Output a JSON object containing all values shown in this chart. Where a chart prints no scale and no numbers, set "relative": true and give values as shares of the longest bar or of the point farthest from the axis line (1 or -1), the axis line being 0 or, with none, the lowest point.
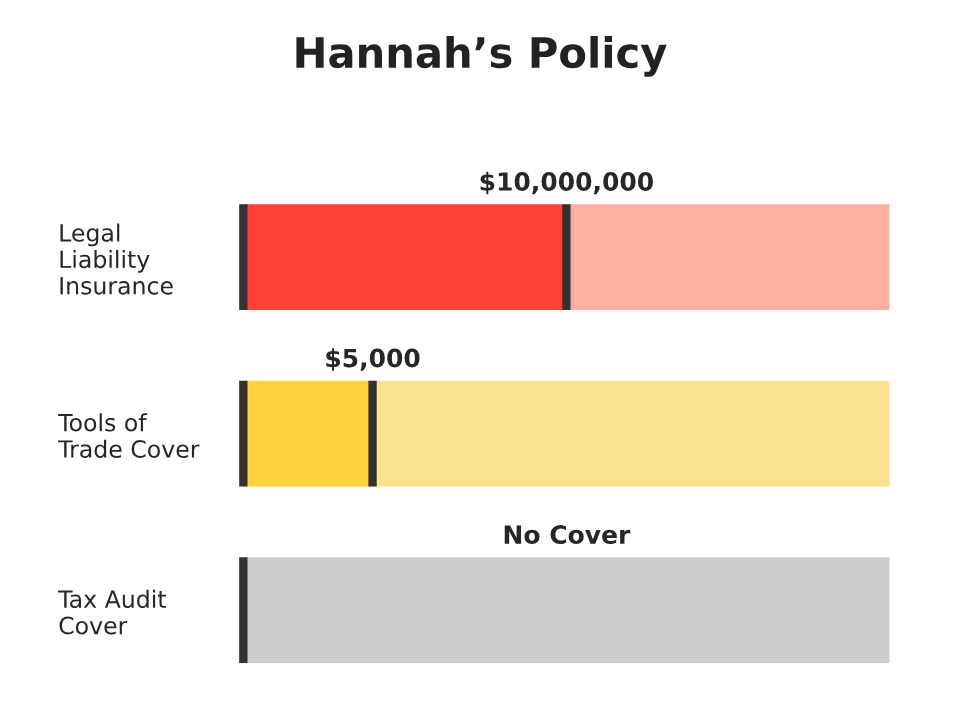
{
  "chart_data": {
    "type": "bar",
    "orientation": "horizontal",
    "stacked": true,
    "relative": true,
    "title": "Hannah’s Policy",
    "categories": [
      "Legal\nLiability\nInsurance",
      "Tools of\nTrade Cover",
      "Tax Audit\nCover"
    ],
    "series": [
      {
        "colors": [
          "#ff4136",
          "#ffd23f",
          "#cccccc"
        ],
        "values": [
          0.5,
          0.2,
          0
        ]
      },
      {
        "colors": [
          "#ffaf9f",
          "#fce28e",
          "#cccccc"
        ],
        "values": [
          0.5,
          0.8,
          1
        ]
      }
    ],
    "annotations": [
      {
        "text": "$10,000,000",
        "x": 0.5,
        "y": "Legal\nLiability\nInsurance"
      },
      {
        "text": "$5,000",
        "x": 0.2,
        "y": "Tools of\nTrade Cover"
      },
      "No Cover"
    ],
    "grid": false,
    "legend": false
  }
}
